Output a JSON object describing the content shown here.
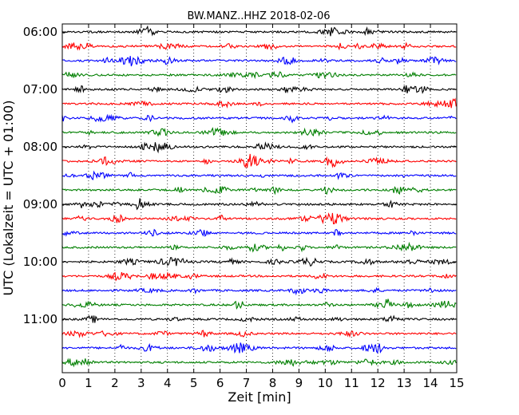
{
  "chart_data": {
    "type": "line",
    "subtype": "helicorder (dayplot) seismogram",
    "title": "BW.MANZ..HHZ 2018-02-06",
    "xlabel": "Zeit  [min]",
    "ylabel": "UTC (Lokalzeit = UTC + 01:00)",
    "xlim": [
      0,
      15
    ],
    "x_ticks": [
      0,
      1,
      2,
      3,
      4,
      5,
      6,
      7,
      8,
      9,
      10,
      11,
      12,
      13,
      14,
      15
    ],
    "x_tick_labels": [
      "0",
      "1",
      "2",
      "3",
      "4",
      "5",
      "6",
      "7",
      "8",
      "9",
      "10",
      "11",
      "12",
      "13",
      "14",
      "15"
    ],
    "x_grid": "dotted vertical lines at each minute",
    "y_ticks": [
      "06:00",
      "07:00",
      "08:00",
      "09:00",
      "10:00",
      "11:00"
    ],
    "minutes_per_line": 15,
    "line_colors": [
      "#000000",
      "#ff0000",
      "#0000ff",
      "#007f00"
    ],
    "series": [
      {
        "start": "06:00",
        "color": "#000000"
      },
      {
        "start": "06:15",
        "color": "#ff0000"
      },
      {
        "start": "06:30",
        "color": "#0000ff"
      },
      {
        "start": "06:45",
        "color": "#007f00"
      },
      {
        "start": "07:00",
        "color": "#000000"
      },
      {
        "start": "07:15",
        "color": "#ff0000"
      },
      {
        "start": "07:30",
        "color": "#0000ff"
      },
      {
        "start": "07:45",
        "color": "#007f00"
      },
      {
        "start": "08:00",
        "color": "#000000"
      },
      {
        "start": "08:15",
        "color": "#ff0000"
      },
      {
        "start": "08:30",
        "color": "#0000ff"
      },
      {
        "start": "08:45",
        "color": "#007f00"
      },
      {
        "start": "09:00",
        "color": "#000000"
      },
      {
        "start": "09:15",
        "color": "#ff0000"
      },
      {
        "start": "09:30",
        "color": "#0000ff"
      },
      {
        "start": "09:45",
        "color": "#007f00"
      },
      {
        "start": "10:00",
        "color": "#000000"
      },
      {
        "start": "10:15",
        "color": "#ff0000"
      },
      {
        "start": "10:30",
        "color": "#0000ff"
      },
      {
        "start": "10:45",
        "color": "#007f00"
      },
      {
        "start": "11:00",
        "color": "#000000"
      },
      {
        "start": "11:15",
        "color": "#ff0000"
      },
      {
        "start": "11:30",
        "color": "#0000ff"
      },
      {
        "start": "11:45",
        "color": "#007f00"
      }
    ]
  }
}
